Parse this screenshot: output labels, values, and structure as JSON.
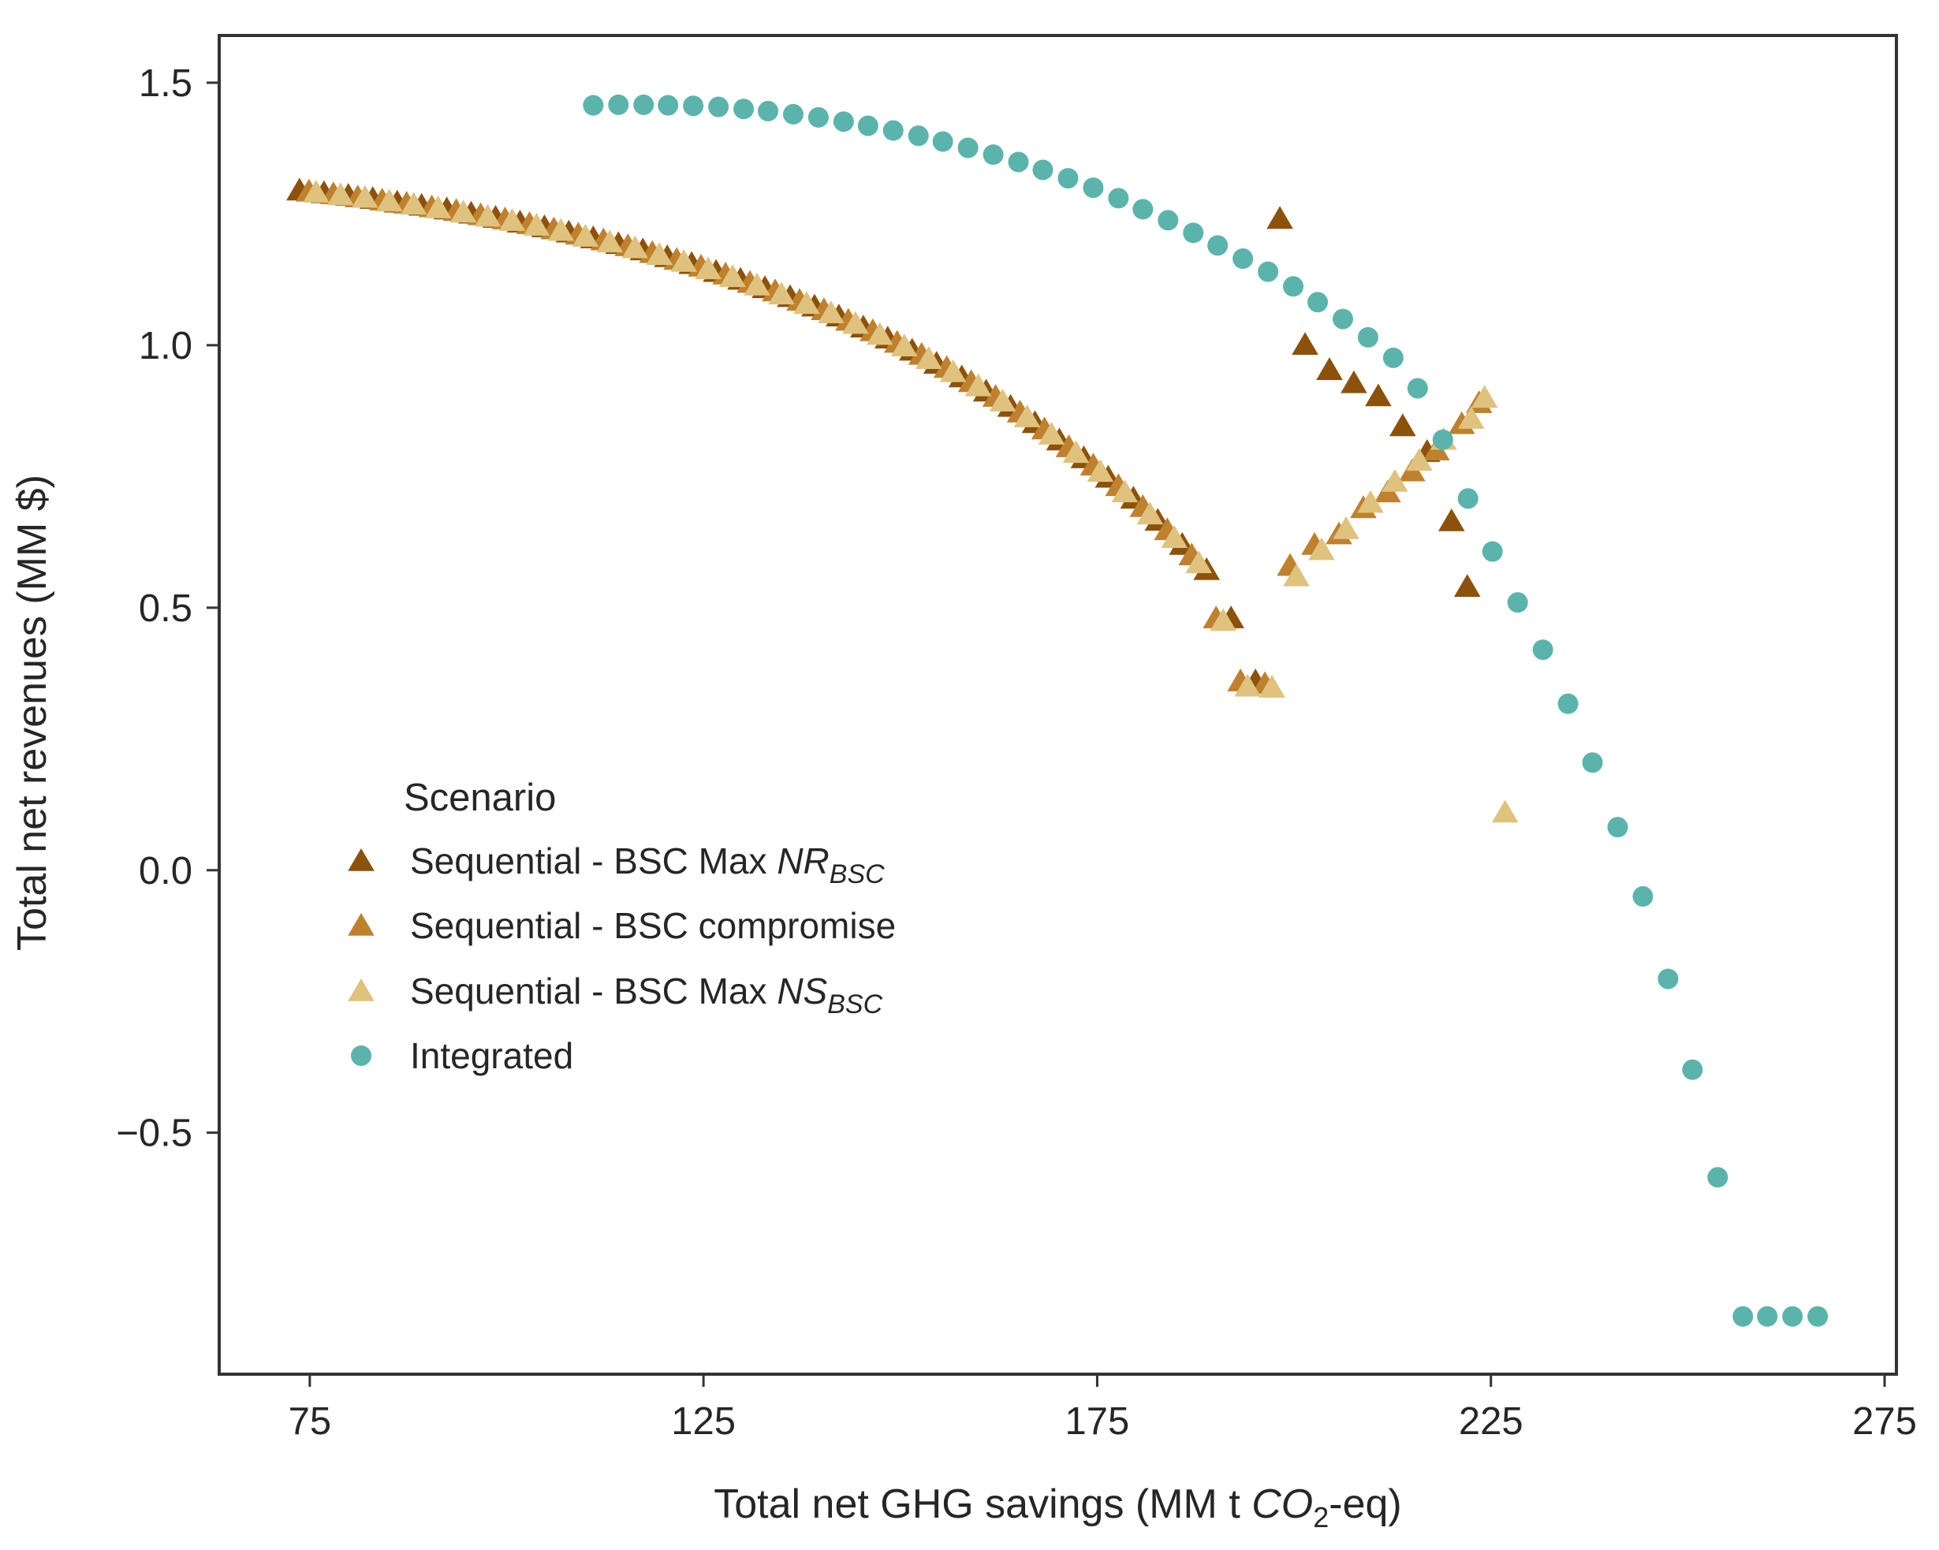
{
  "chart_data": {
    "type": "scatter",
    "title": "",
    "xlabel": "Total net GHG savings (MM t CO2-eq)",
    "xlabel_parts": {
      "pre": "Total net GHG savings (MM t ",
      "math": "CO",
      "sub": "2",
      "post": "-eq)"
    },
    "ylabel": "Total net revenues (MM $)",
    "xlim": [
      63.5,
      276.5
    ],
    "ylim": [
      -0.96,
      1.59
    ],
    "xticks": [
      75,
      125,
      175,
      225,
      275
    ],
    "xtick_labels": [
      "75",
      "125",
      "175",
      "225",
      "275"
    ],
    "yticks": [
      1.5,
      1.0,
      0.5,
      0.0,
      -0.5
    ],
    "ytick_labels": [
      "1.5",
      "1.0",
      "0.5",
      "0.0",
      "−0.5"
    ],
    "legend": {
      "title": "Scenario",
      "location": "center-left",
      "entries": [
        {
          "label": "Sequential - BSC Max NR_BSC",
          "text": "Sequential - BSC Max ",
          "math": "NR",
          "sub": "BSC",
          "series": 0
        },
        {
          "label": "Sequential - BSC compromise",
          "text": "Sequential - BSC compromise",
          "math": "",
          "sub": "",
          "series": 1
        },
        {
          "label": "Sequential - BSC Max NS_BSC",
          "text": "Sequential - BSC Max ",
          "math": "NS",
          "sub": "BSC",
          "series": 2
        },
        {
          "label": "Integrated",
          "text": "Integrated",
          "math": "",
          "sub": "",
          "series": 3
        }
      ]
    },
    "series": [
      {
        "name": "Sequential - BSC Max NR_BSC",
        "marker": "triangle",
        "color": "#8c510a",
        "x": [
          73.7,
          76.8,
          79.9,
          83.0,
          86.1,
          89.2,
          92.4,
          95.5,
          98.6,
          101.7,
          104.8,
          107.9,
          111.0,
          114.2,
          117.3,
          120.4,
          123.5,
          126.6,
          129.7,
          132.8,
          136.0,
          139.1,
          142.2,
          145.3,
          148.4,
          151.5,
          154.6,
          157.8,
          160.9,
          164.0,
          167.1,
          170.2,
          173.3,
          176.4,
          179.6,
          182.7,
          185.8,
          188.9,
          192.0,
          195.1,
          198.2,
          201.4,
          204.5,
          207.6,
          210.7,
          213.8,
          216.9,
          220.0,
          222.0
        ],
        "y": [
          1.295,
          1.29,
          1.285,
          1.279,
          1.272,
          1.266,
          1.259,
          1.251,
          1.243,
          1.234,
          1.225,
          1.215,
          1.204,
          1.193,
          1.181,
          1.168,
          1.155,
          1.14,
          1.125,
          1.109,
          1.092,
          1.074,
          1.055,
          1.034,
          1.013,
          0.99,
          0.965,
          0.939,
          0.912,
          0.883,
          0.852,
          0.819,
          0.785,
          0.748,
          0.708,
          0.666,
          0.62,
          0.572,
          0.48,
          0.36,
          1.241,
          1.001,
          0.953,
          0.928,
          0.903,
          0.846,
          0.797,
          0.665,
          0.54
        ]
      },
      {
        "name": "Sequential - BSC compromise",
        "marker": "triangle",
        "color": "#bf812d",
        "x": [
          74.9,
          78.0,
          81.1,
          84.2,
          87.3,
          90.5,
          93.6,
          96.7,
          99.8,
          102.9,
          106.0,
          109.1,
          112.3,
          115.4,
          118.5,
          121.6,
          124.7,
          127.8,
          130.9,
          134.1,
          137.2,
          140.3,
          143.4,
          146.5,
          149.6,
          152.7,
          155.9,
          159.0,
          162.1,
          165.2,
          168.3,
          171.4,
          174.5,
          177.7,
          180.8,
          183.9,
          187.0,
          190.1,
          193.2,
          196.3,
          199.5,
          202.6,
          205.7,
          208.8,
          211.9,
          215.0,
          218.1,
          221.3,
          223.5
        ],
        "y": [
          1.293,
          1.288,
          1.282,
          1.276,
          1.27,
          1.263,
          1.256,
          1.248,
          1.24,
          1.231,
          1.221,
          1.211,
          1.2,
          1.189,
          1.176,
          1.163,
          1.15,
          1.135,
          1.119,
          1.103,
          1.085,
          1.067,
          1.047,
          1.027,
          1.005,
          0.982,
          0.957,
          0.93,
          0.902,
          0.872,
          0.84,
          0.806,
          0.771,
          0.732,
          0.692,
          0.648,
          0.6,
          0.48,
          0.36,
          0.355,
          0.58,
          0.62,
          0.64,
          0.69,
          0.72,
          0.76,
          0.8,
          0.85,
          0.89
        ]
      },
      {
        "name": "Sequential - BSC Max NS_BSC",
        "marker": "triangle",
        "color": "#dfc27d",
        "x": [
          75.8,
          78.9,
          82.0,
          85.1,
          88.2,
          91.3,
          94.5,
          97.6,
          100.7,
          103.8,
          106.9,
          110.0,
          113.1,
          116.3,
          119.4,
          122.5,
          125.6,
          128.7,
          131.8,
          134.9,
          138.1,
          141.2,
          144.3,
          147.4,
          150.5,
          153.6,
          156.7,
          159.9,
          163.0,
          166.1,
          169.2,
          172.3,
          175.4,
          178.5,
          181.7,
          184.8,
          187.9,
          191.0,
          194.1,
          197.2,
          200.3,
          203.5,
          206.6,
          209.7,
          212.8,
          215.9,
          219.0,
          222.5,
          224.2,
          226.8
        ],
        "y": [
          1.291,
          1.286,
          1.281,
          1.274,
          1.268,
          1.261,
          1.253,
          1.245,
          1.237,
          1.228,
          1.218,
          1.207,
          1.196,
          1.185,
          1.172,
          1.159,
          1.145,
          1.13,
          1.114,
          1.097,
          1.079,
          1.061,
          1.041,
          1.02,
          0.998,
          0.974,
          0.949,
          0.922,
          0.893,
          0.863,
          0.83,
          0.795,
          0.759,
          0.72,
          0.678,
          0.633,
          0.585,
          0.475,
          0.35,
          0.348,
          0.56,
          0.61,
          0.65,
          0.7,
          0.74,
          0.78,
          0.82,
          0.86,
          0.9,
          0.11
        ]
      },
      {
        "name": "Integrated",
        "marker": "circle",
        "color": "#5ab4ac",
        "x": [
          111.0,
          114.2,
          117.4,
          120.5,
          123.7,
          126.9,
          130.1,
          133.2,
          136.4,
          139.6,
          142.8,
          145.9,
          149.1,
          152.3,
          155.4,
          158.6,
          161.8,
          165.0,
          168.1,
          171.3,
          174.5,
          177.7,
          180.8,
          184.0,
          187.2,
          190.3,
          193.5,
          196.7,
          199.9,
          203.0,
          206.2,
          209.4,
          212.6,
          215.7,
          218.9,
          222.1,
          225.2,
          228.4,
          231.6,
          234.8,
          237.9,
          241.1,
          244.3,
          247.5,
          250.6,
          253.8,
          257.0,
          260.1,
          263.3,
          266.5
        ],
        "y": [
          1.457,
          1.458,
          1.458,
          1.457,
          1.456,
          1.454,
          1.45,
          1.446,
          1.44,
          1.434,
          1.426,
          1.418,
          1.409,
          1.399,
          1.388,
          1.376,
          1.363,
          1.349,
          1.334,
          1.318,
          1.3,
          1.28,
          1.259,
          1.238,
          1.214,
          1.19,
          1.165,
          1.14,
          1.112,
          1.082,
          1.05,
          1.015,
          0.976,
          0.918,
          0.82,
          0.708,
          0.607,
          0.51,
          0.42,
          0.317,
          0.205,
          0.082,
          -0.05,
          -0.207,
          -0.38,
          -0.585,
          -0.85,
          -0.85,
          -0.85,
          -0.85
        ]
      }
    ]
  }
}
